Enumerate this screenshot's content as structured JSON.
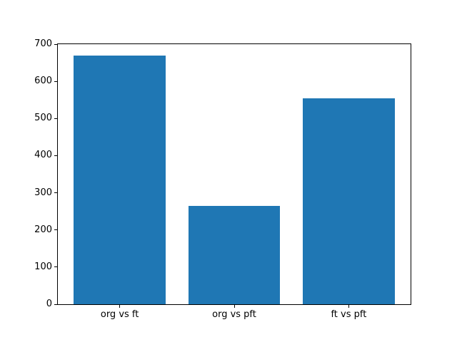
{
  "chart_data": {
    "type": "bar",
    "title": "",
    "xlabel": "",
    "ylabel": "",
    "categories": [
      "org vs ft",
      "org vs pft",
      "ft vs pft"
    ],
    "values": [
      670,
      265,
      554
    ],
    "ylim": [
      0,
      700
    ],
    "yticks": [
      0,
      100,
      200,
      300,
      400,
      500,
      600,
      700
    ],
    "ytick_labels": [
      "0",
      "100",
      "200",
      "300",
      "400",
      "500",
      "600",
      "700"
    ],
    "bar_color": "#1f77b4",
    "background_color": "#ffffff",
    "spine_color": "#000000",
    "grid": false,
    "legend": null
  }
}
